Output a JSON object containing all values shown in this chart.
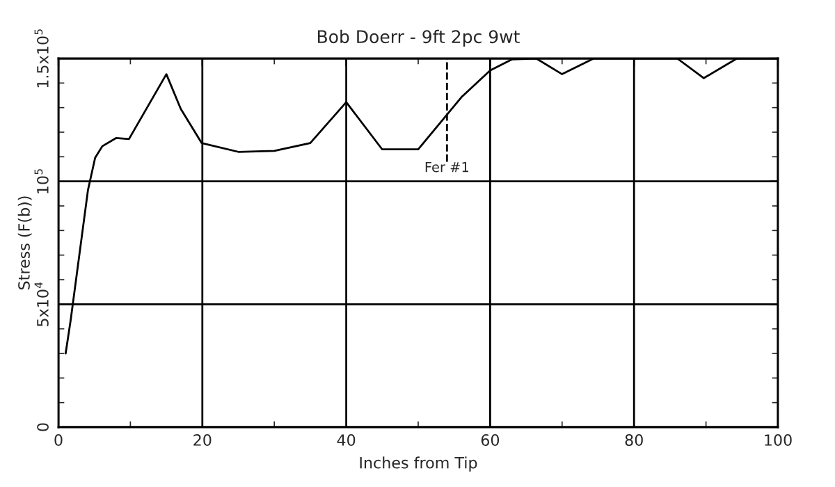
{
  "chart_data": {
    "type": "line",
    "title": "Bob Doerr - 9ft 2pc 9wt",
    "xlabel": "Inches from Tip",
    "ylabel": "Stress (F(b))",
    "series": [
      {
        "color": "#000000",
        "x": [
          1,
          1.7,
          4.1,
          5.1,
          6.1,
          8,
          9.8,
          15,
          17,
          19.9,
          25,
          30,
          35,
          40,
          45,
          50,
          56,
          60,
          63,
          66.4,
          70,
          74.4,
          86,
          89.7,
          94.3,
          100
        ],
        "values": [
          30000,
          43600,
          96400,
          109600,
          114300,
          117600,
          117200,
          143600,
          129500,
          115600,
          112000,
          112400,
          115600,
          132200,
          113000,
          113000,
          134200,
          145100,
          149600,
          150000,
          143600,
          150000,
          150000,
          142000,
          150000,
          150000
        ]
      }
    ],
    "xlim": [
      0,
      100
    ],
    "xticks": [
      0,
      20,
      40,
      60,
      80,
      100
    ],
    "ylim": [
      0,
      150000
    ],
    "yticks": [
      0,
      {
        "value": 50000,
        "label": "5x10$^{4}$"
      },
      {
        "value": 100000,
        "label": "10$^{5}$"
      },
      {
        "value": 150000,
        "label": "1.5x10$^{5}$"
      }
    ],
    "ref_lines": [
      {
        "axis": "x",
        "value": 54,
        "label": "Fer #1",
        "line_style": "dashed",
        "color": "#000000"
      }
    ],
    "grid": true,
    "marker": "none",
    "line_style": "solid",
    "legend": false
  }
}
